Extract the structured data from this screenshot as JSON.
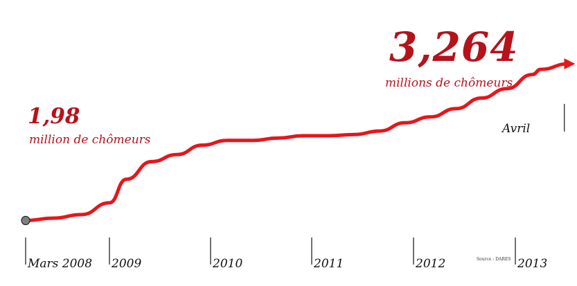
{
  "chart_data": {
    "type": "line",
    "title": "",
    "xlabel": "",
    "ylabel": "",
    "x_ticks": [
      "Mars 2008",
      "2009",
      "2010",
      "2011",
      "2012",
      "2013"
    ],
    "ylim": [
      1.5,
      3.5
    ],
    "series": [
      {
        "points": [
          {
            "x": "2008-03",
            "y": 1.98
          },
          {
            "x": "2008-06",
            "y": 2.0
          },
          {
            "x": "2008-09",
            "y": 2.03
          },
          {
            "x": "2008-12",
            "y": 2.13
          },
          {
            "x": "2009-03",
            "y": 2.33
          },
          {
            "x": "2009-06",
            "y": 2.48
          },
          {
            "x": "2009-09",
            "y": 2.54
          },
          {
            "x": "2009-12",
            "y": 2.62
          },
          {
            "x": "2010-03",
            "y": 2.66
          },
          {
            "x": "2010-06",
            "y": 2.66
          },
          {
            "x": "2010-09",
            "y": 2.68
          },
          {
            "x": "2010-12",
            "y": 2.7
          },
          {
            "x": "2011-03",
            "y": 2.7
          },
          {
            "x": "2011-06",
            "y": 2.71
          },
          {
            "x": "2011-09",
            "y": 2.74
          },
          {
            "x": "2011-12",
            "y": 2.81
          },
          {
            "x": "2012-03",
            "y": 2.86
          },
          {
            "x": "2012-06",
            "y": 2.93
          },
          {
            "x": "2012-09",
            "y": 3.02
          },
          {
            "x": "2012-12",
            "y": 3.1
          },
          {
            "x": "2013-03",
            "y": 3.22
          },
          {
            "x": "2013-04",
            "y": 3.264
          }
        ]
      }
    ],
    "annotations": {
      "start_value": "1,98",
      "start_label": "million de chômeurs",
      "end_value": "3,264",
      "end_label": "millions de chômeurs",
      "end_month": "Avril",
      "source": "Source : DARES"
    },
    "grid": false,
    "legend": "none",
    "colors": {
      "line": "#e8151b",
      "text_accent": "#b5121b",
      "marker": "#808080"
    }
  }
}
